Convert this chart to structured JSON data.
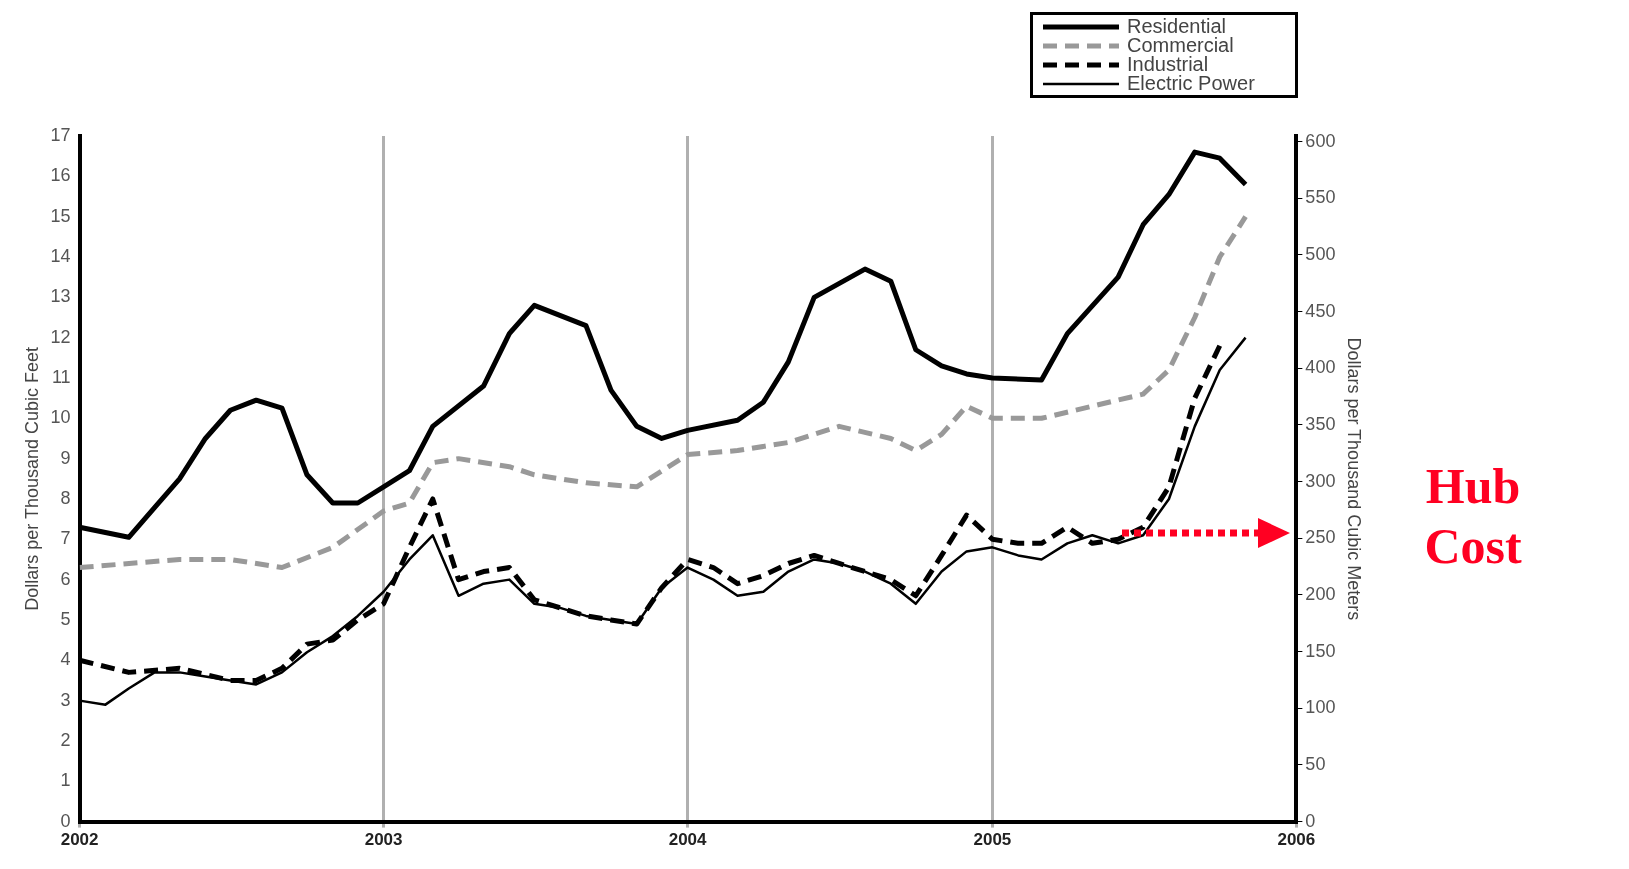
{
  "chart_data": {
    "type": "line",
    "ylabel": "Dollars per Thousand Cubic Feet",
    "y2label": "Dollars per Thousand Cubic Meters",
    "xlim": [
      "2002-01",
      "2006-01"
    ],
    "xticks": [
      "2002",
      "2003",
      "2004",
      "2005",
      "2006"
    ],
    "ylim": [
      0,
      17
    ],
    "yticks": [
      0,
      1,
      2,
      3,
      4,
      5,
      6,
      7,
      8,
      9,
      10,
      11,
      12,
      13,
      14,
      15,
      16,
      17
    ],
    "y2lim": [
      0,
      605
    ],
    "y2ticks": [
      0,
      50,
      100,
      150,
      200,
      250,
      300,
      350,
      400,
      450,
      500,
      550,
      600
    ],
    "grid": "x",
    "legend": "top right",
    "marker": "none",
    "annotations": [
      "Hub Cost"
    ],
    "series": [
      {
        "name": "Residential",
        "color": "#000000",
        "line_style": "solid",
        "x": [
          "2002-01",
          "2002-03",
          "2002-05",
          "2002-06",
          "2002-07",
          "2002-08",
          "2002-09",
          "2002-10",
          "2002-11",
          "2002-12",
          "2003-01",
          "2003-02",
          "2003-03",
          "2003-05",
          "2003-06",
          "2003-07",
          "2003-09",
          "2003-10",
          "2003-11",
          "2003-12",
          "2004-01",
          "2004-03",
          "2004-04",
          "2004-05",
          "2004-06",
          "2004-08",
          "2004-09",
          "2004-10",
          "2004-11",
          "2004-12",
          "2005-01",
          "2005-03",
          "2005-04",
          "2005-06",
          "2005-07",
          "2005-08",
          "2005-09",
          "2005-10",
          "2005-11"
        ],
        "values": [
          7.3,
          7.05,
          8.5,
          9.5,
          10.2,
          10.45,
          10.25,
          8.6,
          7.9,
          7.9,
          8.3,
          8.7,
          9.8,
          10.8,
          12.1,
          12.8,
          12.3,
          10.7,
          9.8,
          9.5,
          9.7,
          9.95,
          10.4,
          11.4,
          13.0,
          13.7,
          13.4,
          11.7,
          11.3,
          11.1,
          11.0,
          10.95,
          12.1,
          13.5,
          14.8,
          15.55,
          16.6,
          16.45,
          15.8
        ]
      },
      {
        "name": "Commercial",
        "color": "#999999",
        "line_style": "dashed",
        "x": [
          "2002-01",
          "2002-05",
          "2002-07",
          "2002-09",
          "2002-11",
          "2003-01",
          "2003-02",
          "2003-03",
          "2003-04",
          "2003-06",
          "2003-07",
          "2003-09",
          "2003-11",
          "2004-01",
          "2004-03",
          "2004-05",
          "2004-07",
          "2004-09",
          "2004-10",
          "2004-11",
          "2004-12",
          "2005-01",
          "2005-03",
          "2005-05",
          "2005-07",
          "2005-08",
          "2005-09",
          "2005-10",
          "2005-11"
        ],
        "values": [
          6.3,
          6.5,
          6.5,
          6.3,
          6.8,
          7.7,
          7.9,
          8.9,
          9.0,
          8.8,
          8.6,
          8.4,
          8.3,
          9.1,
          9.2,
          9.4,
          9.8,
          9.5,
          9.2,
          9.6,
          10.3,
          10.0,
          10.0,
          10.3,
          10.6,
          11.2,
          12.5,
          14.0,
          15.0
        ]
      },
      {
        "name": "Industrial",
        "color": "#000000",
        "line_style": "dashed",
        "x": [
          "2002-01",
          "2002-03",
          "2002-05",
          "2002-07",
          "2002-08",
          "2002-09",
          "2002-10",
          "2002-11",
          "2002-12",
          "2003-01",
          "2003-02",
          "2003-03",
          "2003-04",
          "2003-05",
          "2003-06",
          "2003-07",
          "2003-08",
          "2003-09",
          "2003-10",
          "2003-11",
          "2003-12",
          "2004-01",
          "2004-02",
          "2004-03",
          "2004-04",
          "2004-05",
          "2004-06",
          "2004-07",
          "2004-08",
          "2004-09",
          "2004-10",
          "2004-11",
          "2004-12",
          "2005-01",
          "2005-02",
          "2005-03",
          "2005-04",
          "2005-05",
          "2005-06",
          "2005-07",
          "2005-08",
          "2005-09",
          "2005-10"
        ],
        "values": [
          4.0,
          3.7,
          3.8,
          3.5,
          3.5,
          3.8,
          4.4,
          4.5,
          5.0,
          5.4,
          6.8,
          8.0,
          6.0,
          6.2,
          6.3,
          5.5,
          5.3,
          5.1,
          5.0,
          4.9,
          5.8,
          6.5,
          6.3,
          5.9,
          6.1,
          6.4,
          6.6,
          6.4,
          6.2,
          6.0,
          5.6,
          6.6,
          7.6,
          7.0,
          6.9,
          6.9,
          7.3,
          6.9,
          7.0,
          7.3,
          8.3,
          10.5,
          11.8
        ]
      },
      {
        "name": "Electric Power",
        "color": "#000000",
        "line_style": "solid",
        "x": [
          "2002-01",
          "2002-02",
          "2002-03",
          "2002-04",
          "2002-05",
          "2002-06",
          "2002-07",
          "2002-08",
          "2002-09",
          "2002-10",
          "2002-11",
          "2002-12",
          "2003-01",
          "2003-02",
          "2003-03",
          "2003-04",
          "2003-05",
          "2003-06",
          "2003-07",
          "2003-08",
          "2003-09",
          "2003-10",
          "2003-11",
          "2003-12",
          "2004-01",
          "2004-02",
          "2004-03",
          "2004-04",
          "2004-05",
          "2004-06",
          "2004-07",
          "2004-08",
          "2004-09",
          "2004-10",
          "2004-11",
          "2004-12",
          "2005-01",
          "2005-02",
          "2005-03",
          "2005-04",
          "2005-05",
          "2005-06",
          "2005-07",
          "2005-08",
          "2005-09",
          "2005-10",
          "2005-11"
        ],
        "values": [
          3.0,
          2.9,
          3.3,
          3.7,
          3.7,
          3.6,
          3.5,
          3.4,
          3.7,
          4.2,
          4.6,
          5.1,
          5.7,
          6.5,
          7.1,
          5.6,
          5.9,
          6.0,
          5.4,
          5.3,
          5.1,
          5.0,
          4.9,
          5.8,
          6.3,
          6.0,
          5.6,
          5.7,
          6.2,
          6.5,
          6.4,
          6.2,
          5.9,
          5.4,
          6.2,
          6.7,
          6.8,
          6.6,
          6.5,
          6.9,
          7.1,
          6.9,
          7.1,
          8.0,
          9.8,
          11.2,
          12.0
        ]
      }
    ]
  }
}
